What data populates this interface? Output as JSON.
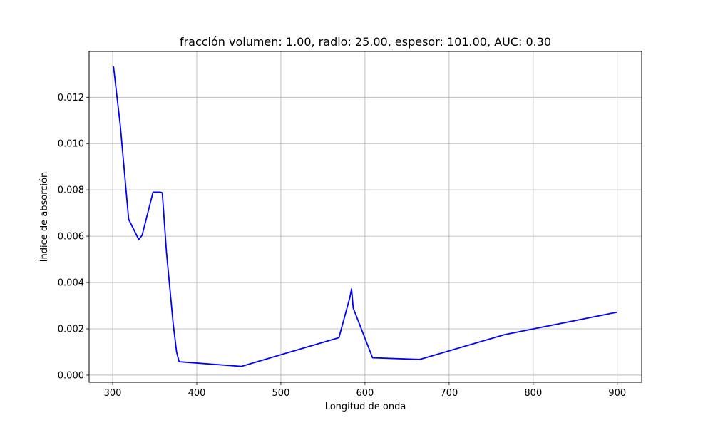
{
  "chart_data": {
    "type": "line",
    "title": "fracción volumen: 1.00, radio: 25.00, espesor: 101.00, AUC: 0.30",
    "xlabel": "Longitud de onda",
    "ylabel": "Índice de absorción",
    "xlim": [
      272,
      929
    ],
    "ylim": [
      -0.00031,
      0.01398
    ],
    "xticks": [
      300,
      400,
      500,
      600,
      700,
      800,
      900
    ],
    "xtick_labels": [
      "300",
      "400",
      "500",
      "600",
      "700",
      "800",
      "900"
    ],
    "yticks": [
      0.0,
      0.002,
      0.004,
      0.006,
      0.008,
      0.01,
      0.012
    ],
    "ytick_labels": [
      "0.000",
      "0.002",
      "0.004",
      "0.006",
      "0.008",
      "0.010",
      "0.012"
    ],
    "grid": true,
    "series": [
      {
        "color": "#0000ff",
        "x": [
          301,
          309,
          319,
          331,
          335,
          348,
          357,
          359,
          364,
          372,
          376,
          379,
          453,
          569,
          582,
          584,
          586,
          609,
          665,
          766,
          900
        ],
        "y": [
          0.01333,
          0.0108,
          0.00673,
          0.00586,
          0.00604,
          0.0079,
          0.0079,
          0.00787,
          0.0053,
          0.0022,
          0.001,
          0.00058,
          0.00038,
          0.00162,
          0.00335,
          0.00372,
          0.0029,
          0.00075,
          0.00068,
          0.00175,
          0.00272
        ]
      }
    ]
  }
}
